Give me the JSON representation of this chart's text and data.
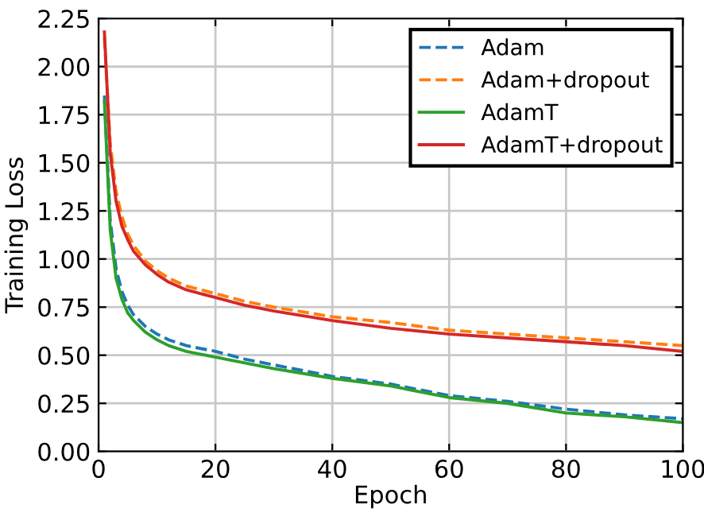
{
  "chart_data": {
    "type": "line",
    "xlabel": "Epoch",
    "ylabel": "Training Loss",
    "x": [
      1,
      2,
      3,
      4,
      5,
      6,
      8,
      10,
      12,
      15,
      20,
      25,
      30,
      40,
      50,
      60,
      70,
      80,
      90,
      100
    ],
    "series": [
      {
        "name": "Adam",
        "color": "#1f77b4",
        "line_style": "dashed",
        "values": [
          1.85,
          1.2,
          0.95,
          0.83,
          0.76,
          0.71,
          0.65,
          0.61,
          0.58,
          0.55,
          0.52,
          0.48,
          0.45,
          0.39,
          0.35,
          0.29,
          0.26,
          0.22,
          0.19,
          0.17
        ]
      },
      {
        "name": "Adam+dropout",
        "color": "#ff7f0e",
        "line_style": "dashed",
        "values": [
          2.15,
          1.6,
          1.35,
          1.22,
          1.13,
          1.07,
          0.99,
          0.94,
          0.9,
          0.86,
          0.82,
          0.78,
          0.75,
          0.7,
          0.67,
          0.63,
          0.61,
          0.59,
          0.57,
          0.55
        ]
      },
      {
        "name": "AdamT",
        "color": "#2ca02c",
        "line_style": "solid",
        "values": [
          1.82,
          1.15,
          0.9,
          0.79,
          0.72,
          0.68,
          0.62,
          0.58,
          0.55,
          0.52,
          0.49,
          0.46,
          0.43,
          0.38,
          0.34,
          0.28,
          0.25,
          0.2,
          0.18,
          0.15
        ]
      },
      {
        "name": "AdamT+dropout",
        "color": "#d62728",
        "line_style": "solid",
        "values": [
          2.18,
          1.55,
          1.3,
          1.17,
          1.1,
          1.04,
          0.97,
          0.92,
          0.88,
          0.84,
          0.8,
          0.76,
          0.73,
          0.68,
          0.64,
          0.61,
          0.59,
          0.57,
          0.55,
          0.52
        ]
      }
    ],
    "xlim": [
      0,
      100
    ],
    "ylim": [
      0,
      2.25
    ],
    "xticks": [
      0,
      20,
      40,
      60,
      80,
      100
    ],
    "yticks": [
      {
        "value": 0,
        "label": "0.00"
      },
      {
        "value": 0.25,
        "label": "0.25"
      },
      {
        "value": 0.5,
        "label": "0.50"
      },
      {
        "value": 0.75,
        "label": "0.75"
      },
      {
        "value": 1.0,
        "label": "1.00"
      },
      {
        "value": 1.25,
        "label": "1.25"
      },
      {
        "value": 1.5,
        "label": "1.50"
      },
      {
        "value": 1.75,
        "label": "1.75"
      },
      {
        "value": 2.0,
        "label": "2.00"
      },
      {
        "value": 2.25,
        "label": "2.25"
      }
    ],
    "grid": true,
    "legend": "top right"
  }
}
